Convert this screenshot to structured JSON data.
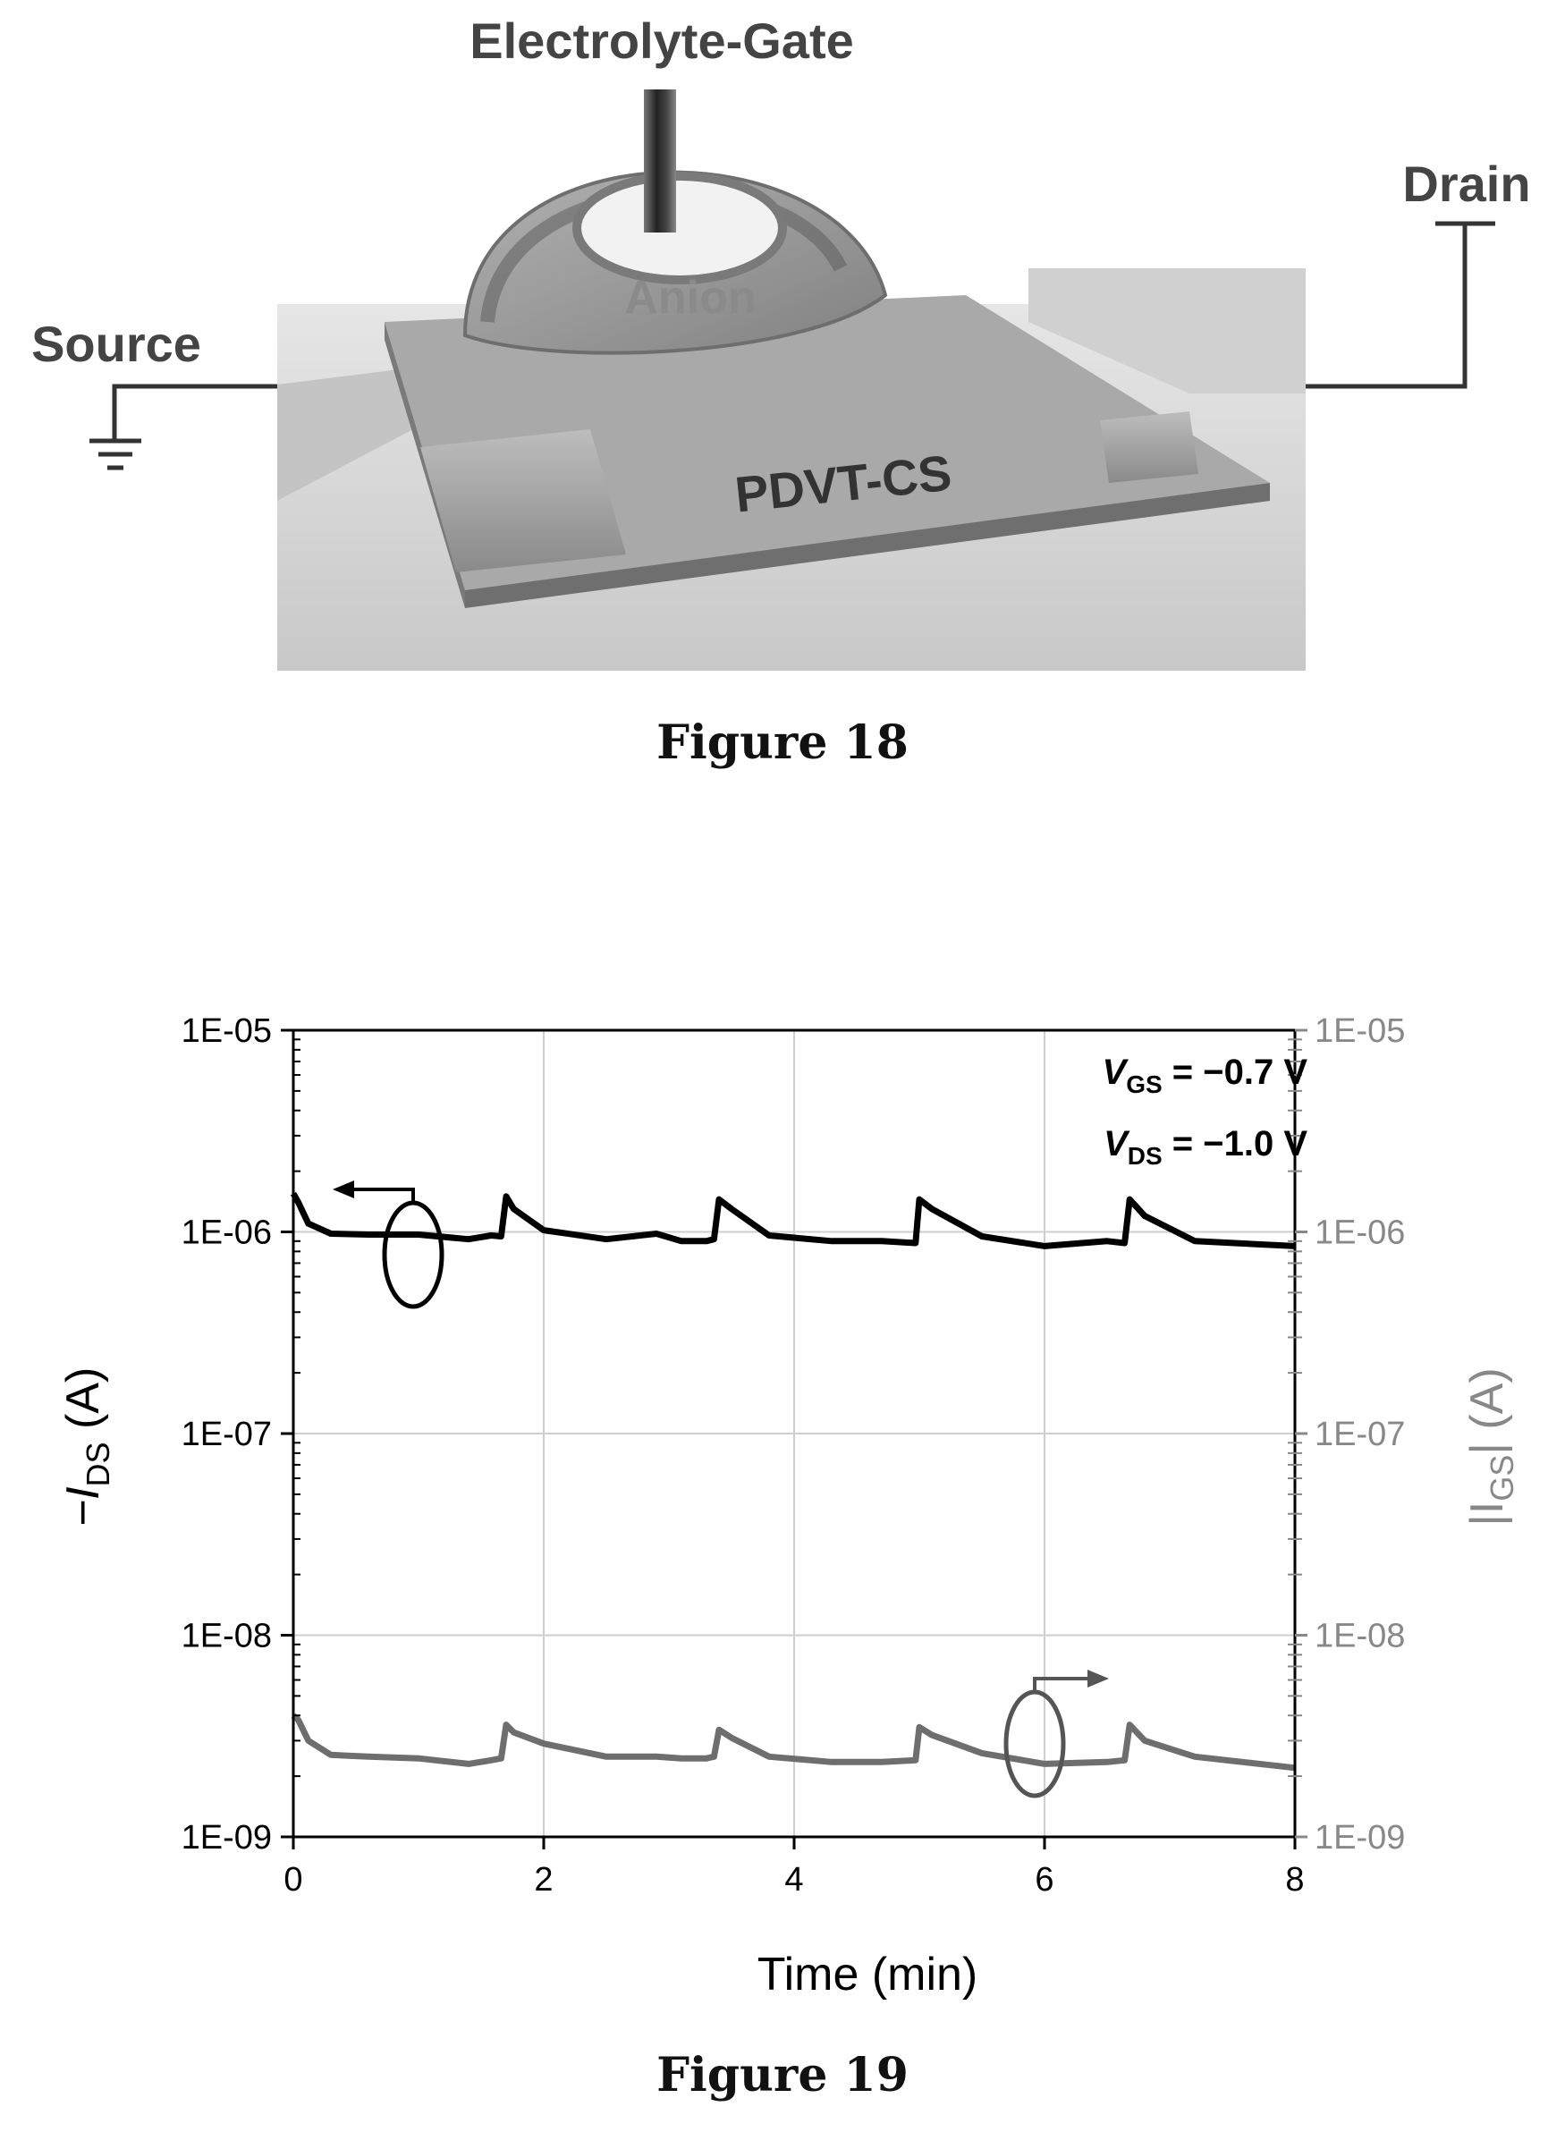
{
  "figure18": {
    "caption": "Figure 18",
    "labels": {
      "gate": "Electrolyte-Gate",
      "drain": "Drain",
      "source": "Source",
      "anion": "Anion",
      "channel": "PDVT-CS"
    }
  },
  "figure19": {
    "caption": "Figure 19",
    "annotations": {
      "vgs_sym": "V",
      "vgs_sub": "GS",
      "vgs_val": " = −0.7 V",
      "vds_sym": "V",
      "vds_sub": "DS",
      "vds_val": " = −1.0 V"
    },
    "axes": {
      "xlabel": "Time (min)",
      "ylabel_left_pre": "−I",
      "ylabel_left_sub": "DS",
      "ylabel_left_post": " (A)",
      "ylabel_right_pre": "|I",
      "ylabel_right_sub": "GS",
      "ylabel_right_post": "| (A)"
    }
  },
  "chart_data": {
    "type": "line",
    "x_ticks": [
      "0",
      "2",
      "4",
      "6",
      "8"
    ],
    "y_ticks": [
      "1E-09",
      "1E-08",
      "1E-07",
      "1E-06",
      "1E-05"
    ],
    "y_ticks_right": [
      "1E-09",
      "1E-08",
      "1E-07",
      "1E-06",
      "1E-05"
    ],
    "xlim": [
      0,
      8
    ],
    "ylim": [
      1e-09,
      1e-05
    ],
    "yscale": "log",
    "grid": true,
    "series": [
      {
        "color": "#000000",
        "axis": "left",
        "x": [
          0,
          0.04,
          0.12,
          0.3,
          0.6,
          1.0,
          1.4,
          1.58,
          1.66,
          1.7,
          1.76,
          2.0,
          2.5,
          2.9,
          3.1,
          3.3,
          3.36,
          3.4,
          3.5,
          3.8,
          4.3,
          4.7,
          4.97,
          5.0,
          5.1,
          5.5,
          6.0,
          6.5,
          6.64,
          6.68,
          6.8,
          7.2,
          8.0
        ],
        "values": [
          1.55e-06,
          1.4e-06,
          1.1e-06,
          9.8e-07,
          9.7e-07,
          9.7e-07,
          9.2e-07,
          9.6e-07,
          9.5e-07,
          1.5e-06,
          1.3e-06,
          1.02e-06,
          9.2e-07,
          9.8e-07,
          9e-07,
          9e-07,
          9.2e-07,
          1.45e-06,
          1.3e-06,
          9.6e-07,
          9e-07,
          9e-07,
          8.8e-07,
          1.45e-06,
          1.3e-06,
          9.5e-07,
          8.5e-07,
          9e-07,
          8.8e-07,
          1.45e-06,
          1.2e-06,
          9e-07,
          8.5e-07
        ]
      },
      {
        "color": "#6e6e6e",
        "axis": "right",
        "x": [
          0,
          0.04,
          0.12,
          0.3,
          0.6,
          1.0,
          1.4,
          1.58,
          1.66,
          1.7,
          1.76,
          2.0,
          2.5,
          2.9,
          3.1,
          3.3,
          3.36,
          3.4,
          3.5,
          3.8,
          4.3,
          4.7,
          4.97,
          5.0,
          5.1,
          5.5,
          6.0,
          6.5,
          6.64,
          6.68,
          6.8,
          7.2,
          8.0
        ],
        "values": [
          4e-09,
          3.8e-09,
          3e-09,
          2.55e-09,
          2.5e-09,
          2.45e-09,
          2.3e-09,
          2.4e-09,
          2.45e-09,
          3.6e-09,
          3.3e-09,
          2.9e-09,
          2.5e-09,
          2.5e-09,
          2.45e-09,
          2.45e-09,
          2.5e-09,
          3.4e-09,
          3.1e-09,
          2.5e-09,
          2.35e-09,
          2.35e-09,
          2.4e-09,
          3.5e-09,
          3.2e-09,
          2.6e-09,
          2.3e-09,
          2.35e-09,
          2.4e-09,
          3.6e-09,
          3e-09,
          2.5e-09,
          2.2e-09
        ]
      }
    ]
  }
}
